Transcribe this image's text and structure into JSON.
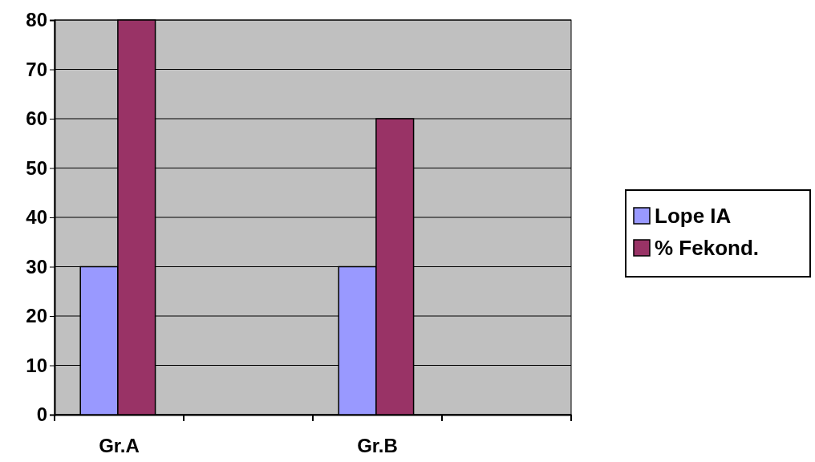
{
  "chart_data": {
    "type": "bar",
    "categories": [
      "Gr.A",
      null,
      "Gr.B",
      null
    ],
    "series": [
      {
        "name": "Lope IA",
        "color": "#9999ff",
        "values": [
          30,
          null,
          30,
          null
        ]
      },
      {
        "name": "% Fekond.",
        "color": "#993366",
        "values": [
          80,
          null,
          60,
          null
        ]
      }
    ],
    "ylim": [
      0,
      80
    ],
    "yticks": [
      0,
      10,
      20,
      30,
      40,
      50,
      60,
      70,
      80
    ],
    "grid": "y",
    "legend": "right"
  }
}
